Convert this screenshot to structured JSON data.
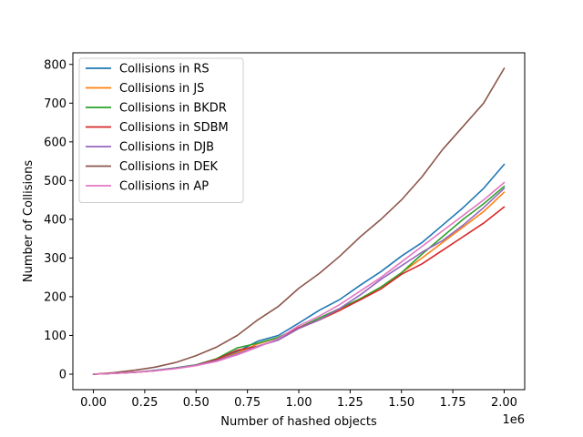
{
  "chart_data": {
    "type": "line",
    "title": "",
    "xlabel": "Number of hashed objects",
    "ylabel": "Number of Collisions",
    "x_offset_text": "1e6",
    "xlim": [
      -0.1,
      2.1
    ],
    "ylim": [
      -40,
      830
    ],
    "x_ticks": [
      0.0,
      0.25,
      0.5,
      0.75,
      1.0,
      1.25,
      1.5,
      1.75,
      2.0
    ],
    "x_tick_labels": [
      "0.00",
      "0.25",
      "0.50",
      "0.75",
      "1.00",
      "1.25",
      "1.50",
      "1.75",
      "2.00"
    ],
    "y_ticks": [
      0,
      100,
      200,
      300,
      400,
      500,
      600,
      700,
      800
    ],
    "y_tick_labels": [
      "0",
      "100",
      "200",
      "300",
      "400",
      "500",
      "600",
      "700",
      "800"
    ],
    "grid": false,
    "legend_position": "top-left",
    "x": [
      0,
      0.1,
      0.2,
      0.3,
      0.4,
      0.5,
      0.6,
      0.7,
      0.8,
      0.9,
      1.0,
      1.1,
      1.2,
      1.3,
      1.4,
      1.5,
      1.6,
      1.7,
      1.8,
      1.9,
      2.0
    ],
    "series": [
      {
        "name": "Collisions in RS",
        "color": "#1f77b4",
        "values": [
          0,
          2,
          5,
          10,
          16,
          24,
          38,
          58,
          85,
          100,
          132,
          165,
          193,
          230,
          265,
          305,
          340,
          385,
          430,
          480,
          542
        ]
      },
      {
        "name": "Collisions in JS",
        "color": "#ff7f0e",
        "values": [
          0,
          2,
          5,
          9,
          15,
          22,
          35,
          55,
          78,
          95,
          118,
          140,
          165,
          195,
          225,
          262,
          300,
          340,
          380,
          420,
          470
        ]
      },
      {
        "name": "Collisions in BKDR",
        "color": "#2ca02c",
        "values": [
          0,
          2,
          5,
          9,
          16,
          24,
          40,
          68,
          80,
          95,
          120,
          145,
          170,
          195,
          225,
          262,
          310,
          355,
          400,
          440,
          485
        ]
      },
      {
        "name": "Collisions in SDBM",
        "color": "#d62728",
        "values": [
          0,
          2,
          5,
          9,
          15,
          23,
          38,
          62,
          72,
          90,
          120,
          140,
          165,
          192,
          220,
          258,
          285,
          320,
          355,
          390,
          432
        ]
      },
      {
        "name": "Collisions in DJB",
        "color": "#9467bd",
        "values": [
          0,
          2,
          5,
          9,
          15,
          23,
          35,
          52,
          72,
          88,
          118,
          140,
          170,
          205,
          245,
          280,
          315,
          345,
          385,
          430,
          480
        ]
      },
      {
        "name": "Collisions in DEK",
        "color": "#8c564b",
        "values": [
          0,
          4,
          10,
          18,
          30,
          48,
          70,
          100,
          140,
          175,
          222,
          260,
          305,
          355,
          400,
          450,
          510,
          580,
          640,
          700,
          790
        ]
      },
      {
        "name": "Collisions in AP",
        "color": "#e377c2",
        "values": [
          0,
          2,
          5,
          9,
          14,
          22,
          33,
          50,
          70,
          92,
          125,
          150,
          180,
          215,
          250,
          290,
          330,
          370,
          410,
          450,
          495
        ]
      }
    ]
  }
}
